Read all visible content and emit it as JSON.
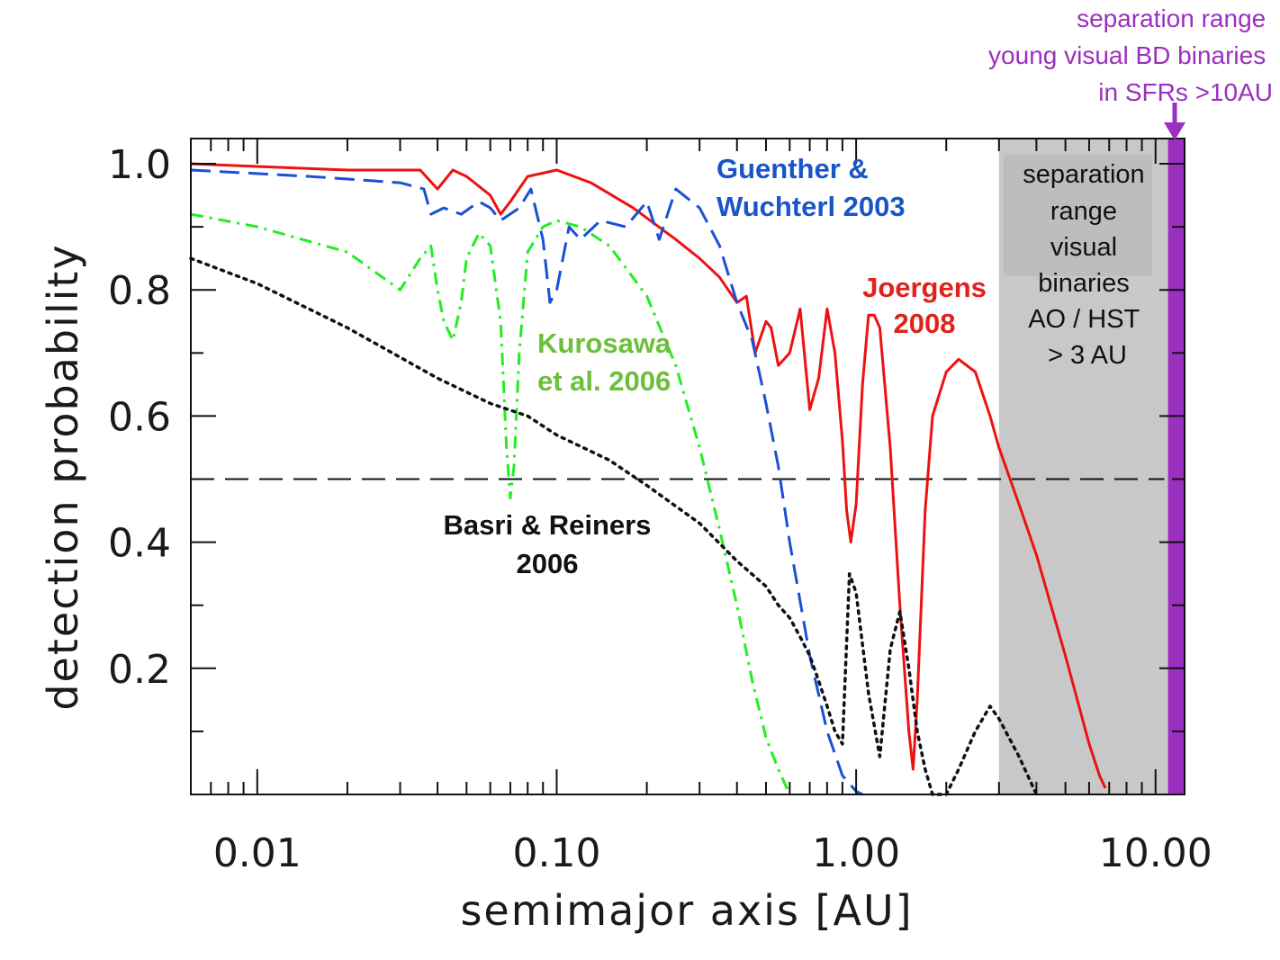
{
  "chart_data": {
    "type": "line",
    "xlabel": "semimajor axis [AU]",
    "ylabel": "detection probability",
    "xscale": "log",
    "xlim": [
      0.006,
      12.5
    ],
    "ylim": [
      0.0,
      1.04
    ],
    "xticks": [
      {
        "value": 0.01,
        "label": "0.01"
      },
      {
        "value": 0.1,
        "label": "0.10"
      },
      {
        "value": 1.0,
        "label": "1.00"
      },
      {
        "value": 10.0,
        "label": "10.00"
      }
    ],
    "yticks": [
      {
        "value": 0.2,
        "label": "0.2"
      },
      {
        "value": 0.4,
        "label": "0.4"
      },
      {
        "value": 0.6,
        "label": "0.6"
      },
      {
        "value": 0.8,
        "label": "0.8"
      },
      {
        "value": 1.0,
        "label": "1.0"
      }
    ],
    "threshold": 0.5,
    "series": [
      {
        "name": "Joergens 2008",
        "color": "#ee1111",
        "style": "solid",
        "x": [
          0.006,
          0.02,
          0.035,
          0.04,
          0.045,
          0.05,
          0.06,
          0.065,
          0.07,
          0.08,
          0.1,
          0.13,
          0.18,
          0.25,
          0.3,
          0.35,
          0.4,
          0.43,
          0.46,
          0.5,
          0.52,
          0.55,
          0.6,
          0.65,
          0.7,
          0.75,
          0.8,
          0.85,
          0.9,
          0.93,
          0.96,
          1.0,
          1.05,
          1.1,
          1.15,
          1.2,
          1.3,
          1.4,
          1.5,
          1.55,
          1.6,
          1.7,
          1.8,
          2.0,
          2.2,
          2.5,
          2.8,
          3.0,
          3.5,
          4.0,
          5.0,
          6.0,
          6.5,
          6.8
        ],
        "y": [
          1.0,
          0.99,
          0.99,
          0.96,
          0.99,
          0.98,
          0.95,
          0.92,
          0.94,
          0.98,
          0.99,
          0.97,
          0.93,
          0.88,
          0.85,
          0.82,
          0.78,
          0.79,
          0.7,
          0.75,
          0.74,
          0.68,
          0.7,
          0.77,
          0.61,
          0.66,
          0.77,
          0.7,
          0.56,
          0.45,
          0.4,
          0.46,
          0.65,
          0.76,
          0.76,
          0.74,
          0.55,
          0.3,
          0.1,
          0.04,
          0.15,
          0.45,
          0.6,
          0.67,
          0.69,
          0.67,
          0.6,
          0.55,
          0.46,
          0.38,
          0.22,
          0.08,
          0.03,
          0.01
        ]
      },
      {
        "name": "Guenther & Wuchterl 2003",
        "color": "#1a4fd6",
        "style": "dashed",
        "x": [
          0.006,
          0.015,
          0.03,
          0.036,
          0.038,
          0.042,
          0.048,
          0.055,
          0.06,
          0.065,
          0.075,
          0.082,
          0.09,
          0.095,
          0.1,
          0.11,
          0.12,
          0.14,
          0.17,
          0.2,
          0.22,
          0.25,
          0.3,
          0.35,
          0.4,
          0.45,
          0.5,
          0.55,
          0.6,
          0.7,
          0.8,
          0.9,
          1.0,
          1.05
        ],
        "y": [
          0.99,
          0.98,
          0.97,
          0.96,
          0.92,
          0.93,
          0.92,
          0.94,
          0.93,
          0.91,
          0.93,
          0.96,
          0.88,
          0.78,
          0.8,
          0.9,
          0.88,
          0.91,
          0.9,
          0.94,
          0.88,
          0.96,
          0.93,
          0.87,
          0.78,
          0.72,
          0.62,
          0.52,
          0.4,
          0.22,
          0.1,
          0.03,
          0.005,
          0.0
        ]
      },
      {
        "name": "Kurosawa et al. 2006",
        "color": "#22ee22",
        "style": "dashdot",
        "x": [
          0.006,
          0.01,
          0.02,
          0.03,
          0.035,
          0.038,
          0.04,
          0.042,
          0.045,
          0.048,
          0.05,
          0.055,
          0.06,
          0.065,
          0.068,
          0.07,
          0.072,
          0.075,
          0.08,
          0.09,
          0.1,
          0.12,
          0.15,
          0.2,
          0.25,
          0.3,
          0.35,
          0.4,
          0.45,
          0.5,
          0.55,
          0.6
        ],
        "y": [
          0.92,
          0.9,
          0.86,
          0.8,
          0.85,
          0.87,
          0.8,
          0.75,
          0.72,
          0.78,
          0.85,
          0.89,
          0.87,
          0.75,
          0.55,
          0.47,
          0.52,
          0.7,
          0.86,
          0.9,
          0.91,
          0.9,
          0.87,
          0.79,
          0.68,
          0.55,
          0.42,
          0.3,
          0.18,
          0.09,
          0.04,
          0.0
        ]
      },
      {
        "name": "Basri & Reiners 2006",
        "color": "#111111",
        "style": "dotted",
        "x": [
          0.006,
          0.01,
          0.02,
          0.04,
          0.06,
          0.08,
          0.1,
          0.15,
          0.2,
          0.3,
          0.4,
          0.5,
          0.55,
          0.6,
          0.65,
          0.7,
          0.75,
          0.8,
          0.85,
          0.9,
          0.95,
          1.0,
          1.1,
          1.2,
          1.3,
          1.4,
          1.5,
          1.6,
          1.7,
          1.8,
          2.0,
          2.2,
          2.5,
          2.8,
          3.0,
          3.5,
          4.0
        ],
        "y": [
          0.85,
          0.81,
          0.74,
          0.66,
          0.62,
          0.6,
          0.57,
          0.53,
          0.49,
          0.43,
          0.37,
          0.33,
          0.3,
          0.28,
          0.25,
          0.22,
          0.18,
          0.14,
          0.1,
          0.08,
          0.35,
          0.32,
          0.16,
          0.06,
          0.23,
          0.29,
          0.2,
          0.1,
          0.04,
          0.0,
          0.0,
          0.04,
          0.1,
          0.14,
          0.12,
          0.06,
          0.0
        ]
      }
    ],
    "shaded_regions": [
      {
        "label": "separation range visual binaries AO / HST > 3 AU",
        "from": 3.0,
        "to": 11.0,
        "color": "#c8c8c8"
      },
      {
        "label": "separation range young visual BD binaries in SFRs >10AU",
        "from": 11.0,
        "to": 12.5,
        "color": "#9b2fbf"
      }
    ],
    "annotations": {
      "guenther": [
        "Guenther &",
        "Wuchterl 2003"
      ],
      "joergens": [
        "Joergens",
        "2008"
      ],
      "kurosawa": [
        "Kurosawa",
        "et al. 2006"
      ],
      "basri": [
        "Basri & Reiners",
        "2006"
      ],
      "gray_box": [
        "separation",
        "range",
        "visual",
        "binaries",
        "AO / HST",
        "> 3 AU"
      ],
      "purple_top": [
        "separation range",
        "young visual BD binaries",
        "in SFRs  >10AU"
      ]
    },
    "annotation_colors": {
      "guenther": "#1a55c8",
      "joergens": "#e0221a",
      "kurosawa": "#6cbf3a",
      "basri": "#111111"
    }
  }
}
